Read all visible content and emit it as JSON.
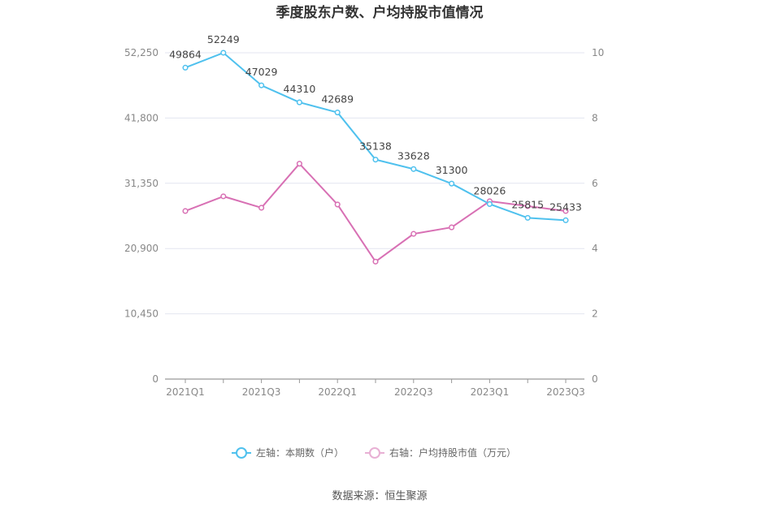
{
  "chart_data": {
    "type": "line",
    "title": "季度股东户数、户均持股市值情况",
    "categories": [
      "2021Q1",
      "2021Q2",
      "2021Q3",
      "2021Q4",
      "2022Q1",
      "2022Q2",
      "2022Q3",
      "2022Q4",
      "2023Q1",
      "2023Q2",
      "2023Q3"
    ],
    "x_tick_labels": [
      "2021Q1",
      "2021Q3",
      "2022Q1",
      "2022Q3",
      "2023Q1",
      "2023Q3"
    ],
    "y_left": {
      "ticks": [
        "0",
        "10,450",
        "20,900",
        "31,350",
        "41,800",
        "52,250"
      ],
      "ylim": [
        0,
        52250
      ]
    },
    "y_right": {
      "ticks": [
        "0",
        "2",
        "4",
        "6",
        "8",
        "10"
      ],
      "ylim": [
        0,
        10
      ]
    },
    "series": [
      {
        "name": "左轴：本期数（户）",
        "axis": "left",
        "color": "#4fc1ee",
        "values": [
          49864,
          52249,
          47029,
          44310,
          42689,
          35138,
          33628,
          31300,
          28026,
          25815,
          25433
        ],
        "labels": [
          "49864",
          "52249",
          "47029",
          "44310",
          "42689",
          "35138",
          "33628",
          "31300",
          "28026",
          "25815",
          "25433"
        ]
      },
      {
        "name": "右轴：户均持股市值（万元）",
        "axis": "right",
        "color": "#d870b4",
        "values": [
          5.15,
          5.6,
          5.25,
          6.6,
          5.35,
          3.6,
          4.45,
          4.65,
          5.45,
          5.3,
          5.15
        ]
      }
    ],
    "grid": true,
    "legend_position": "bottom"
  },
  "footer": {
    "source": "数据来源：恒生聚源"
  }
}
